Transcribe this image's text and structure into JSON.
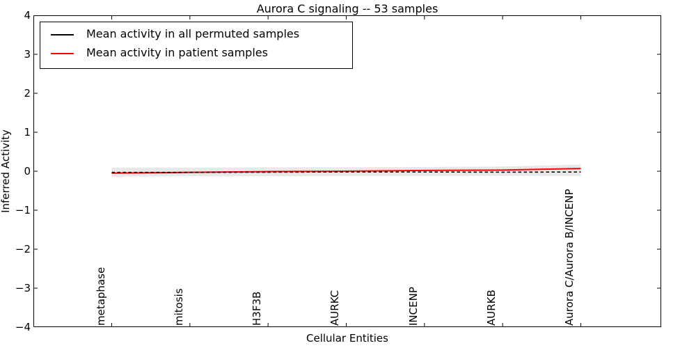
{
  "page": {
    "background": "#ffffff"
  },
  "chart_data": {
    "type": "line",
    "title": "Aurora C signaling -- 53 samples",
    "xlabel": "Cellular Entities",
    "ylabel": "Inferred Activity",
    "categories": [
      "metaphase",
      "mitosis",
      "H3F3B",
      "AURKC",
      "INCENP",
      "AURKB",
      "Aurora C/Aurora B/INCENP"
    ],
    "ylim": [
      -4,
      4
    ],
    "y_ticks": [
      4,
      3,
      2,
      1,
      0,
      -1,
      -2,
      -3,
      -4
    ],
    "y_tick_labels": [
      "4",
      "3",
      "2",
      "1",
      "0",
      "−1",
      "−2",
      "−3",
      "−4"
    ],
    "grid": false,
    "legend_position": "upper left",
    "series": [
      {
        "name": "Mean activity in all permuted samples",
        "color": "#000000",
        "dash": "4.5 3.5",
        "width": 1.6,
        "values": [
          -0.03,
          -0.03,
          -0.025,
          -0.02,
          -0.02,
          -0.025,
          -0.02
        ]
      },
      {
        "name": "Mean activity in patient samples",
        "color": "#ff0000",
        "dash": "",
        "width": 2,
        "values": [
          -0.05,
          -0.03,
          -0.01,
          0.0,
          0.02,
          0.03,
          0.07
        ]
      }
    ],
    "band": {
      "color": "#e8e8e8",
      "upper": [
        0.09,
        0.09,
        0.1,
        0.1,
        0.11,
        0.12,
        0.17
      ],
      "lower": [
        -0.14,
        -0.13,
        -0.13,
        -0.12,
        -0.12,
        -0.12,
        -0.12
      ]
    }
  },
  "legend": {
    "entries": [
      {
        "label": "Mean activity in all permuted samples",
        "color": "#000000"
      },
      {
        "label": "Mean activity in patient samples",
        "color": "#ff0000"
      }
    ]
  }
}
